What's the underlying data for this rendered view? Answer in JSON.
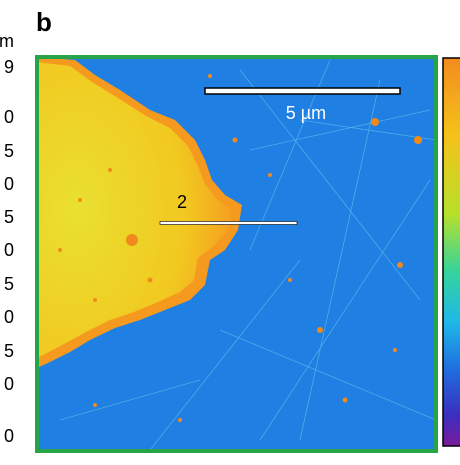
{
  "panel_label": "b",
  "scale_bar": "5 µm",
  "line_label": "2",
  "left_fragment": {
    "unit": "m",
    "labels": [
      "9",
      "0",
      "5",
      "0",
      "5",
      "0",
      "5",
      "0",
      "5",
      "0",
      "0"
    ]
  }
}
